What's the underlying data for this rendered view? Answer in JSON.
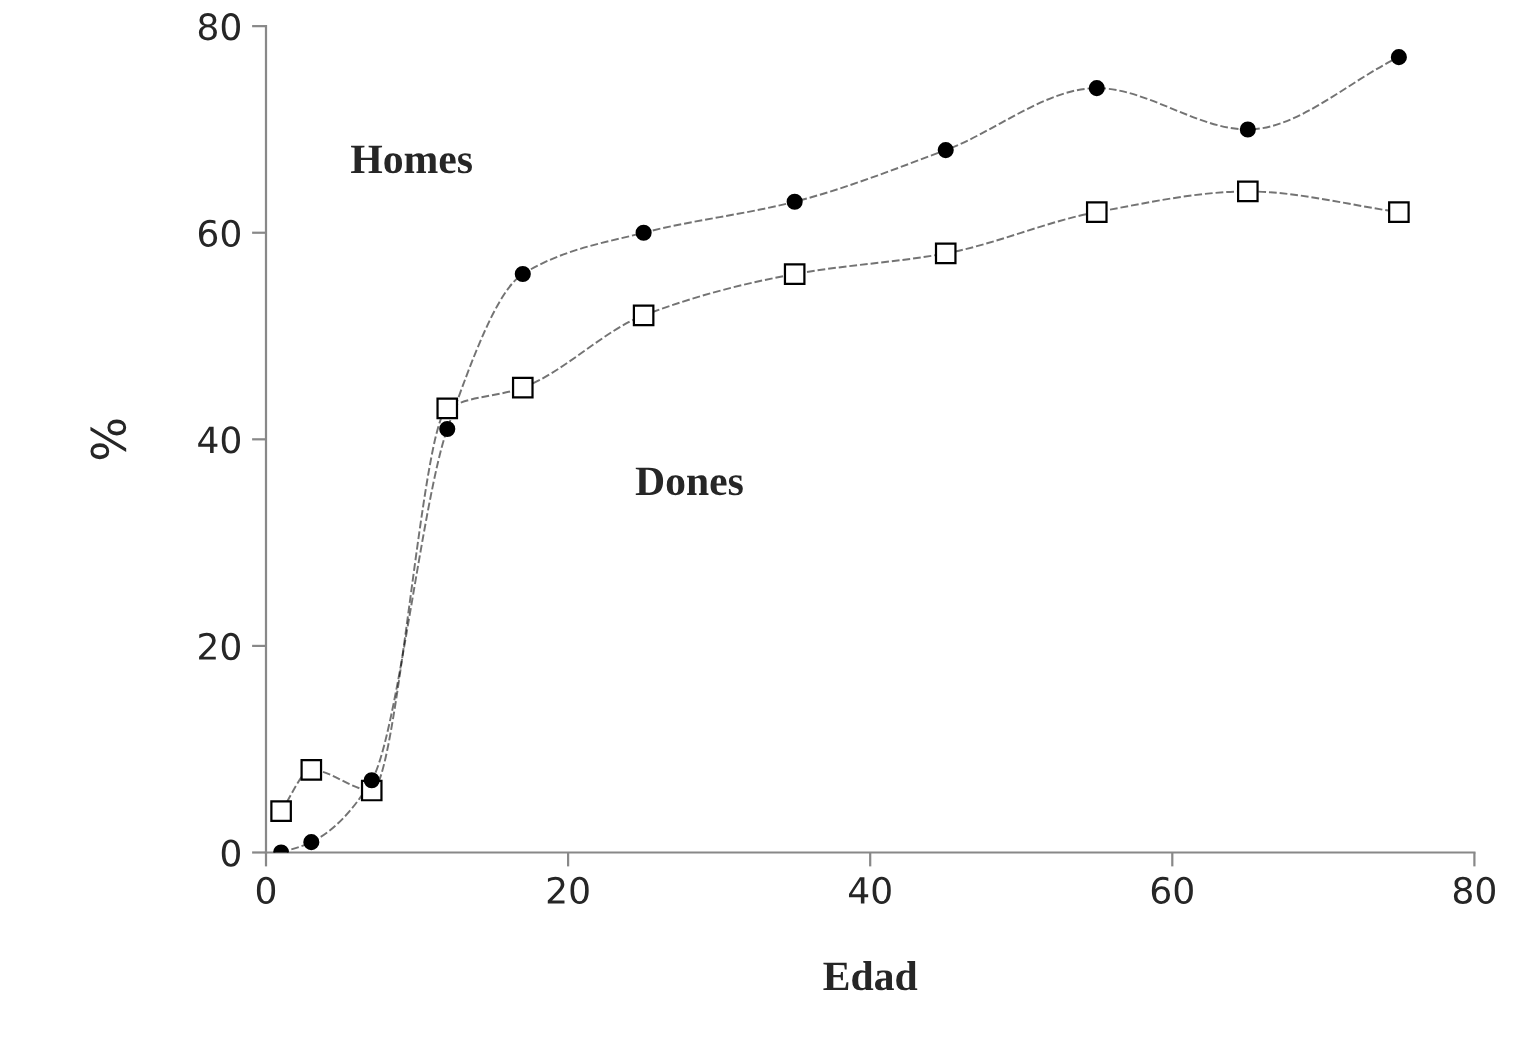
{
  "chart_data": {
    "type": "line",
    "xlabel": "Edad",
    "ylabel": "%",
    "x": [
      1,
      3,
      7,
      12,
      17,
      25,
      35,
      45,
      55,
      65,
      75
    ],
    "series": [
      {
        "name": "Homes",
        "color": "#000000",
        "marker": "circle",
        "values": [
          0,
          1,
          7,
          41,
          56,
          60,
          63,
          68,
          74,
          70,
          77
        ]
      },
      {
        "name": "Dones",
        "color": "#000000",
        "marker": "square",
        "values": [
          4,
          8,
          6,
          43,
          45,
          52,
          56,
          58,
          62,
          64,
          62
        ]
      }
    ],
    "xlim": [
      0,
      80
    ],
    "xticks": [
      0,
      20,
      40,
      60,
      80
    ],
    "ylim": [
      0,
      80
    ],
    "yticks": [
      0,
      20,
      40,
      60,
      80
    ],
    "grid": false,
    "legend": false,
    "line_style": "dashed"
  }
}
